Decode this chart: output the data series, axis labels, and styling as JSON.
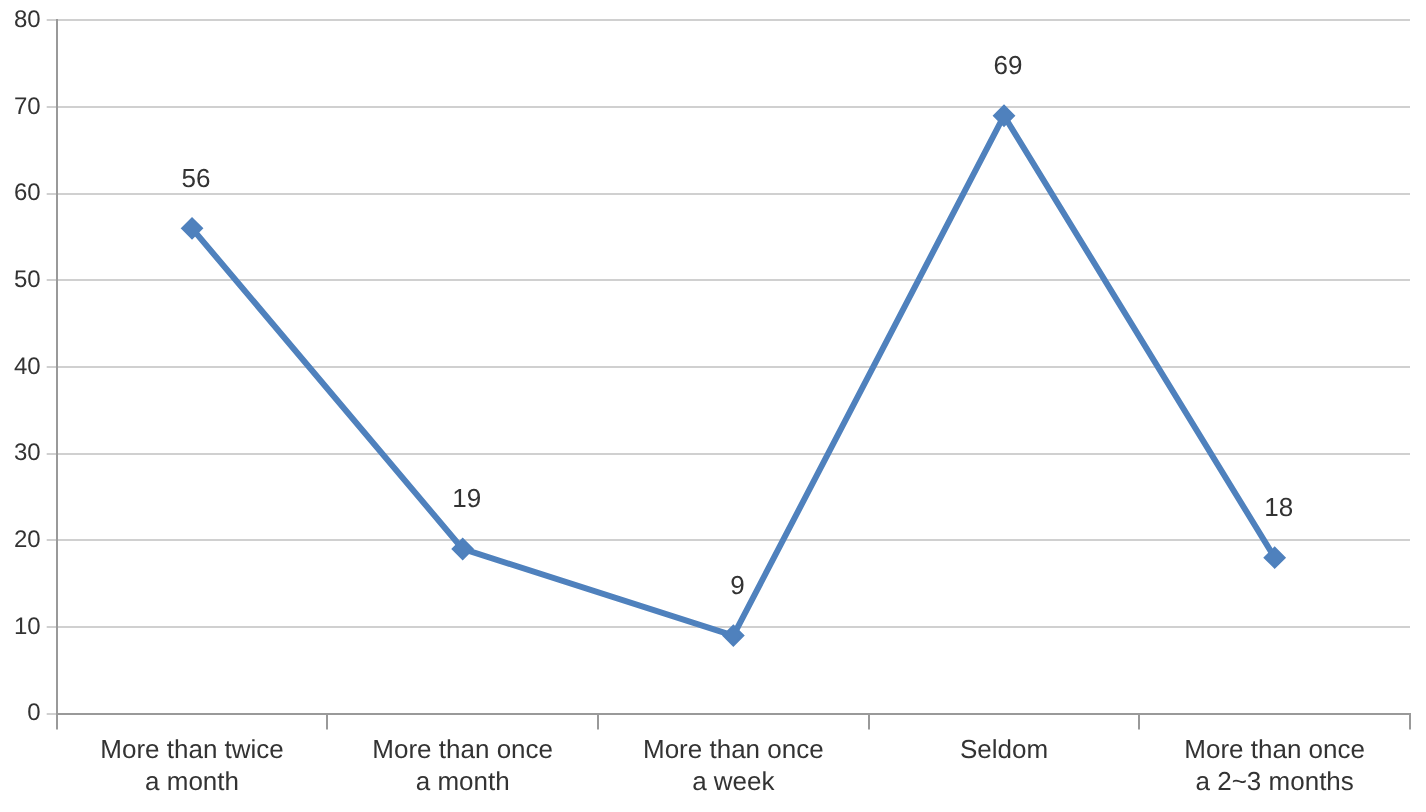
{
  "chart_data": {
    "type": "line",
    "categories": [
      "More than twice a month",
      "More than once a month",
      "More than once a week",
      "Seldom",
      "More than once a 2~3 months"
    ],
    "series": [
      {
        "color": "#4f81bd",
        "values": [
          56,
          19,
          9,
          69,
          18
        ]
      }
    ],
    "ylim": [
      0,
      80
    ],
    "yticks": [
      0,
      10,
      20,
      30,
      40,
      50,
      60,
      70,
      80
    ],
    "grid": "y",
    "legend": false,
    "marker": "diamond",
    "line_style": "solid",
    "data_labels": true
  }
}
